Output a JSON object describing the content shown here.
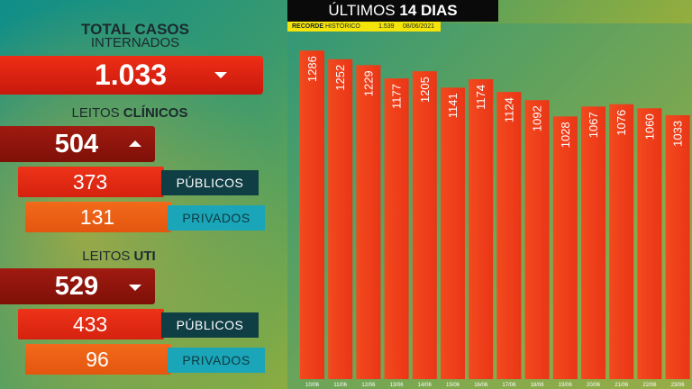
{
  "left": {
    "total_title": "TOTAL CASOS",
    "total_subtitle": "INTERNADOS",
    "total_value": "1.033",
    "clinicos": {
      "label_prefix": "LEITOS",
      "label_bold": "CLÍNICOS",
      "value": "504",
      "publicos_value": "373",
      "publicos_label": "PÚBLICOS",
      "privados_value": "131",
      "privados_label": "PRIVADOS"
    },
    "uti": {
      "label_prefix": "LEITOS",
      "label_bold": "UTI",
      "value": "529",
      "publicos_value": "433",
      "publicos_label": "PÚBLICOS",
      "privados_value": "96",
      "privados_label": "PRIVADOS"
    },
    "icons": {
      "total_trend": "caret-down-icon",
      "clinicos_trend": "caret-up-icon",
      "uti_trend": "caret-down-icon"
    }
  },
  "header": {
    "title_prefix": "ÚLTIMOS",
    "title_bold": "14 DIAS",
    "record_label": "RECORDE",
    "record_label_2": "HISTÓRICO",
    "record_value": "1.539",
    "record_date": "08/06/2021"
  },
  "colors": {
    "bar": "#ea3516",
    "bar_top": "#f24a1e",
    "box_red": "#e3230f",
    "box_dark_red": "#8c140b",
    "tag_dark": "#0f3e44",
    "tag_cyan": "#1aa5b8",
    "record_strip": "#f4e40a"
  },
  "chart_data": {
    "type": "bar",
    "categories": [
      "10/06",
      "11/06",
      "12/06",
      "13/06",
      "14/06",
      "15/06",
      "16/06",
      "17/06",
      "18/06",
      "19/06",
      "20/06",
      "21/06",
      "22/06",
      "23/06"
    ],
    "values": [
      1286,
      1252,
      1229,
      1177,
      1205,
      1141,
      1174,
      1124,
      1092,
      1028,
      1067,
      1076,
      1060,
      1033
    ],
    "title": "ÚLTIMOS 14 DIAS",
    "ylim": [
      0,
      1350
    ],
    "grid": false,
    "legend": "none"
  }
}
